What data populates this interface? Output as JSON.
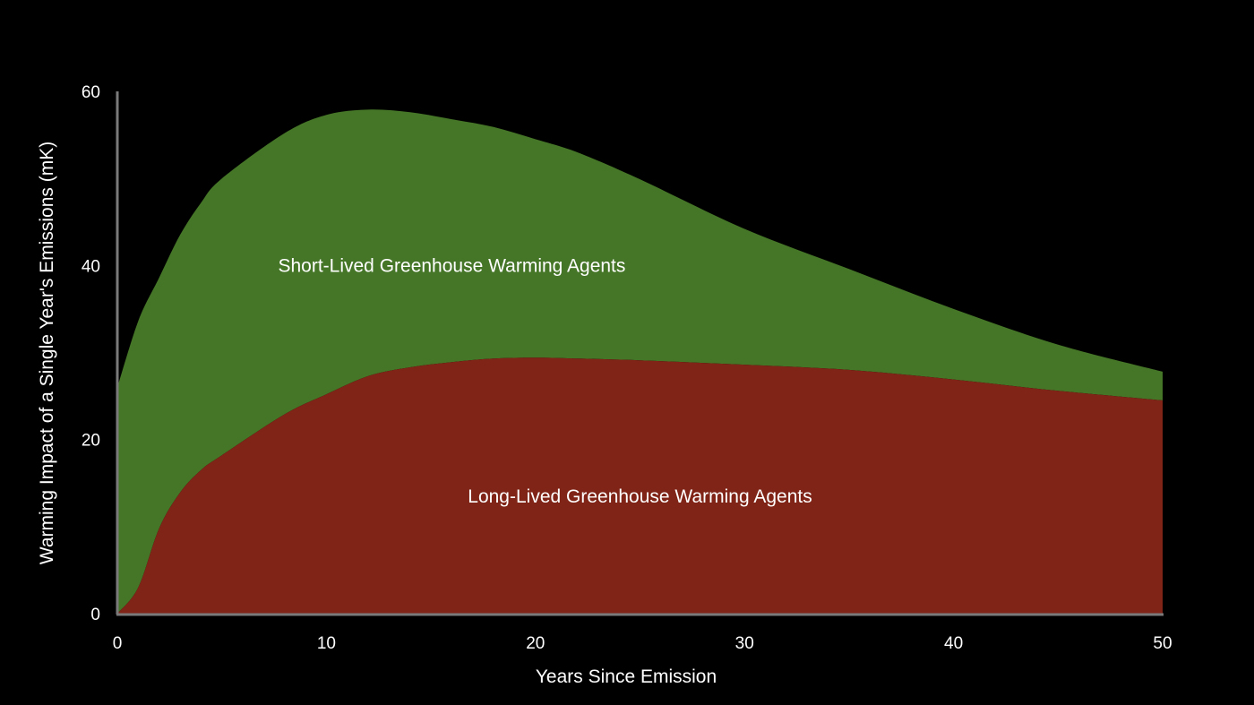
{
  "chart_data": {
    "type": "area",
    "stacked": true,
    "title": "",
    "xlabel": "Years Since Emission",
    "ylabel": "Warming Impact of a Single Year's Emissions (mK)",
    "xlim": [
      0,
      50
    ],
    "ylim": [
      0,
      60
    ],
    "xticks": [
      "0",
      "10",
      "20",
      "30",
      "40",
      "50"
    ],
    "yticks": [
      "0",
      "20",
      "40",
      "60"
    ],
    "grid": false,
    "x": [
      0,
      1,
      2,
      3,
      4,
      5,
      8,
      10,
      12,
      14,
      16,
      18,
      20,
      22,
      25,
      30,
      35,
      40,
      45,
      50
    ],
    "series": [
      {
        "name": "Long-Lived Greenhouse Warming Agents",
        "color": "#7f2416",
        "values": [
          0,
          3,
          9.8,
          13.9,
          16.5,
          18.2,
          22.9,
          25.2,
          27.3,
          28.3,
          28.9,
          29.3,
          29.4,
          29.3,
          29.1,
          28.6,
          28.0,
          26.9,
          25.6,
          24.5
        ]
      },
      {
        "name": "Short-Lived Greenhouse Warming Agents",
        "color": "#457527",
        "values": [
          26,
          30.6,
          28.8,
          29.6,
          30.7,
          31.8,
          32.3,
          32.1,
          30.6,
          29.3,
          27.9,
          26.6,
          25.1,
          23.7,
          20.8,
          15.6,
          11.6,
          8.1,
          5.3,
          3.3
        ]
      }
    ],
    "annotations": [
      {
        "text": "Short-Lived Greenhouse Warming Agents",
        "x": 16,
        "y": 40
      },
      {
        "text": "Long-Lived Greenhouse Warming Agents",
        "x": 25,
        "y": 13.5
      }
    ]
  }
}
